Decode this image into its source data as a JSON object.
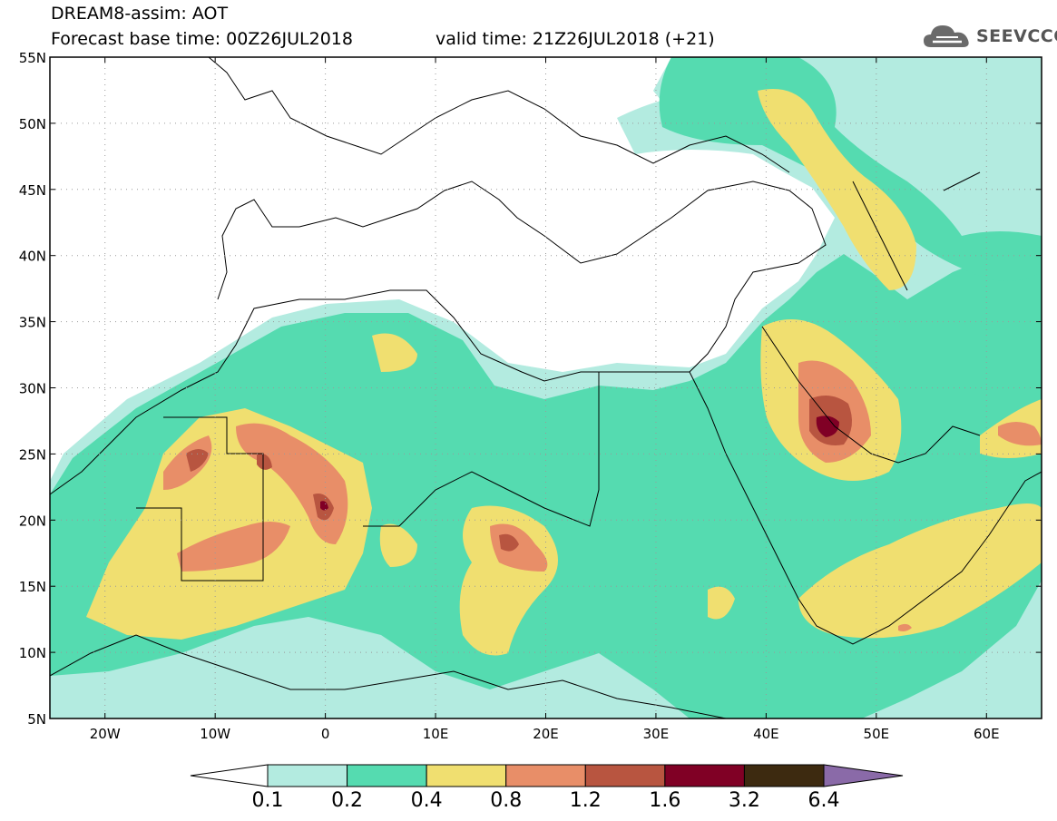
{
  "header": {
    "title": "DREAM8-assim: AOT",
    "base_time": "Forecast base time: 00Z26JUL2018",
    "valid_time": "valid time: 21Z26JUL2018 (+21)"
  },
  "logo": {
    "text": "SEEVCCC",
    "icon": "cloud-icon"
  },
  "map": {
    "lon_range": [
      -25,
      65
    ],
    "lat_range": [
      5,
      55
    ],
    "lat_labels": [
      "5N",
      "10N",
      "15N",
      "20N",
      "25N",
      "30N",
      "35N",
      "40N",
      "45N",
      "50N",
      "55N"
    ],
    "lon_labels": [
      "20W",
      "10W",
      "0",
      "10E",
      "20E",
      "30E",
      "40E",
      "50E",
      "60E"
    ]
  },
  "legend": {
    "levels": [
      "0.1",
      "0.2",
      "0.4",
      "0.8",
      "1.2",
      "1.6",
      "3.2",
      "6.4"
    ],
    "colors": [
      "#b3ebe0",
      "#55dbb0",
      "#f0df70",
      "#e88e68",
      "#b85540",
      "#800025",
      "#3d2a10"
    ],
    "under_color": "#ffffff",
    "over_color": "#8a6aa8"
  }
}
